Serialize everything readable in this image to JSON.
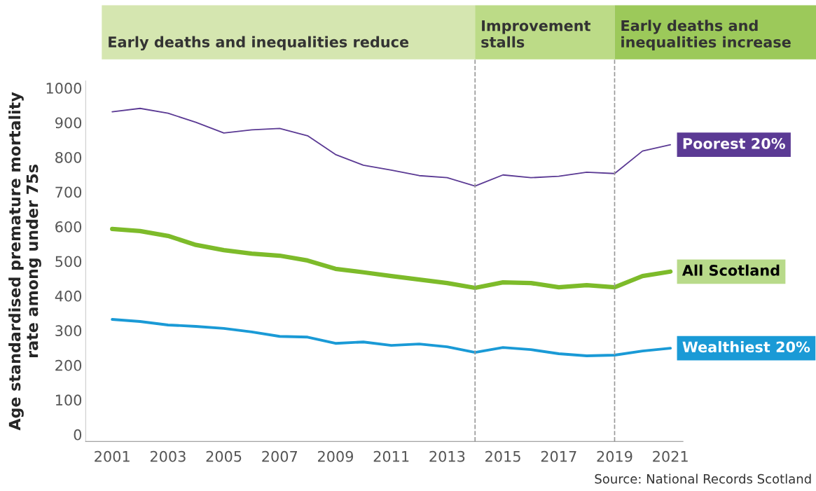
{
  "chart_data": {
    "type": "line",
    "ylabel": "Age standardised premature mortality\nrate among under 75s",
    "x": [
      2001,
      2002,
      2003,
      2004,
      2005,
      2006,
      2007,
      2008,
      2009,
      2010,
      2011,
      2012,
      2013,
      2014,
      2015,
      2016,
      2017,
      2018,
      2019,
      2020,
      2021
    ],
    "series": [
      {
        "name": "Poorest 20%",
        "color": "#5b3a94",
        "values": [
          931,
          941,
          927,
          901,
          870,
          879,
          883,
          862,
          808,
          777,
          763,
          747,
          741,
          717,
          749,
          741,
          745,
          757,
          753,
          818,
          836
        ]
      },
      {
        "name": "All Scotland",
        "color": "#7dbb2a",
        "values": [
          593,
          587,
          573,
          547,
          532,
          522,
          516,
          502,
          478,
          468,
          457,
          447,
          437,
          423,
          439,
          437,
          425,
          431,
          425,
          457,
          470
        ]
      },
      {
        "name": "Wealthiest 20%",
        "color": "#1a9ad6",
        "values": [
          332,
          326,
          316,
          312,
          306,
          296,
          283,
          281,
          263,
          267,
          257,
          261,
          253,
          237,
          251,
          245,
          233,
          227,
          229,
          241,
          249
        ]
      }
    ],
    "xlim": [
      2000.05,
      2021.45
    ],
    "ylim": [
      -20,
      1020
    ],
    "xticks": [
      2001,
      2003,
      2005,
      2007,
      2009,
      2011,
      2013,
      2015,
      2017,
      2019,
      2021
    ],
    "yticks": [
      0,
      100,
      200,
      300,
      400,
      500,
      600,
      700,
      800,
      900,
      1000
    ],
    "ref_lines": [
      {
        "axis": "x",
        "value": 2014,
        "color": "#999999",
        "line_style": "dashed"
      },
      {
        "axis": "x",
        "value": 2019,
        "color": "#999999",
        "line_style": "dashed"
      }
    ],
    "annotations": [
      "Early deaths and inequalities reduce",
      "Improvement\nstalls",
      "Early deaths and\ninequalities increase",
      "Source: National Records Scotland"
    ],
    "grid": false,
    "legend": false,
    "marker": "none",
    "line_style": "solid"
  }
}
